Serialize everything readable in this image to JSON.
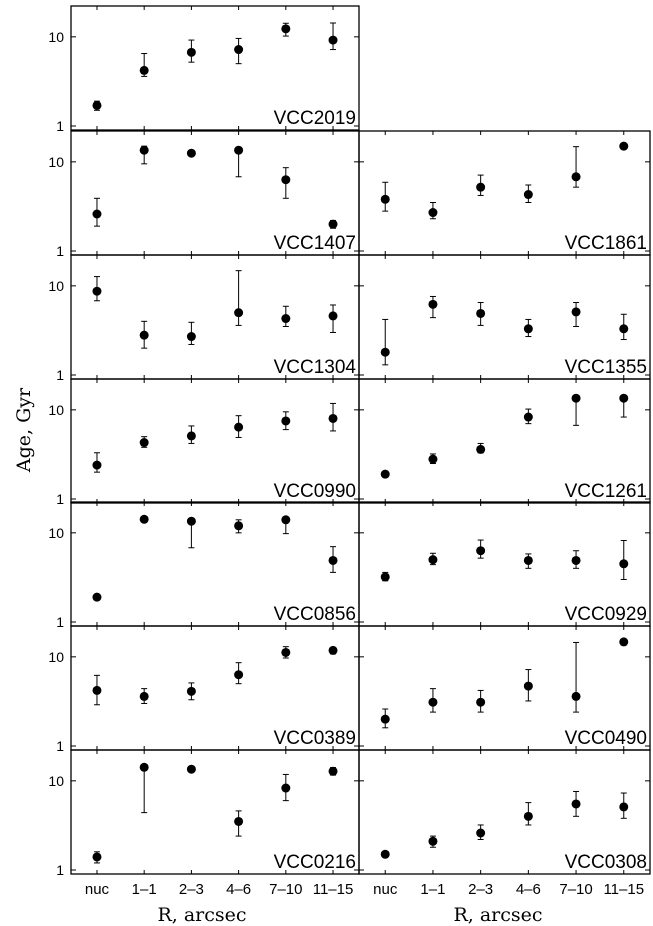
{
  "chart_data": {
    "type": "scatter",
    "ylabel": "Age, Gyr",
    "xlabel": "R, arcsec",
    "categories": [
      "nuc",
      "1–1",
      "2–3",
      "4–6",
      "7–10",
      "11–15"
    ],
    "yscale": "log",
    "ylim": [
      1,
      20
    ],
    "yticks": [
      {
        "value": 1,
        "label": "1"
      },
      {
        "value": 10,
        "label": "10"
      }
    ],
    "grid": false,
    "legend": "none",
    "panels": [
      {
        "name": "VCC2019",
        "row": 0,
        "col": 0,
        "points": [
          {
            "y": 1.7,
            "lo": 1.5,
            "hi": 1.9
          },
          {
            "y": 4.2,
            "lo": 3.6,
            "hi": 6.5
          },
          {
            "y": 6.7,
            "lo": 5.2,
            "hi": 9.2
          },
          {
            "y": 7.2,
            "lo": 5.0,
            "hi": 9.6
          },
          {
            "y": 12.3,
            "lo": 10.2,
            "hi": 14.2
          },
          {
            "y": 9.2,
            "lo": 7.2,
            "hi": 14.3
          }
        ]
      },
      {
        "name": "VCC1407",
        "row": 1,
        "col": 0,
        "points": [
          {
            "y": 2.6,
            "lo": 1.9,
            "hi": 3.9
          },
          {
            "y": 13.5,
            "lo": 9.5,
            "hi": 15.0
          },
          {
            "y": 12.5,
            "lo": null,
            "hi": null
          },
          {
            "y": 13.5,
            "lo": 6.8,
            "hi": 14.0
          },
          {
            "y": 6.3,
            "lo": 3.9,
            "hi": 8.6
          },
          {
            "y": 2.0,
            "lo": 1.8,
            "hi": 2.2
          }
        ]
      },
      {
        "name": "VCC1861",
        "row": 1,
        "col": 1,
        "points": [
          {
            "y": 3.8,
            "lo": 2.8,
            "hi": 5.9
          },
          {
            "y": 2.7,
            "lo": 2.3,
            "hi": 3.5
          },
          {
            "y": 5.2,
            "lo": 4.2,
            "hi": 7.1
          },
          {
            "y": 4.3,
            "lo": 3.5,
            "hi": 5.5
          },
          {
            "y": 6.8,
            "lo": 5.2,
            "hi": 14.8
          },
          {
            "y": 15.0,
            "lo": null,
            "hi": null
          }
        ]
      },
      {
        "name": "VCC1304",
        "row": 2,
        "col": 0,
        "points": [
          {
            "y": 8.7,
            "lo": 6.8,
            "hi": 12.7
          },
          {
            "y": 2.8,
            "lo": 2.0,
            "hi": 4.0
          },
          {
            "y": 2.7,
            "lo": 2.2,
            "hi": 3.9
          },
          {
            "y": 5.0,
            "lo": 3.6,
            "hi": 14.8
          },
          {
            "y": 4.3,
            "lo": 3.5,
            "hi": 5.9
          },
          {
            "y": 4.6,
            "lo": 3.0,
            "hi": 6.1
          }
        ]
      },
      {
        "name": "VCC1355",
        "row": 2,
        "col": 1,
        "points": [
          {
            "y": 1.8,
            "lo": 1.3,
            "hi": 4.2
          },
          {
            "y": 6.2,
            "lo": 4.4,
            "hi": 7.6
          },
          {
            "y": 4.9,
            "lo": 3.6,
            "hi": 6.5
          },
          {
            "y": 3.3,
            "lo": 2.7,
            "hi": 4.2
          },
          {
            "y": 5.1,
            "lo": 3.5,
            "hi": 6.5
          },
          {
            "y": 3.3,
            "lo": 2.5,
            "hi": 4.8
          }
        ]
      },
      {
        "name": "VCC0990",
        "row": 3,
        "col": 0,
        "points": [
          {
            "y": 2.4,
            "lo": 2.0,
            "hi": 3.3
          },
          {
            "y": 4.3,
            "lo": 3.8,
            "hi": 5.0
          },
          {
            "y": 5.1,
            "lo": 4.2,
            "hi": 6.6
          },
          {
            "y": 6.4,
            "lo": 4.9,
            "hi": 8.6
          },
          {
            "y": 7.5,
            "lo": 6.0,
            "hi": 9.5
          },
          {
            "y": 8.0,
            "lo": 5.8,
            "hi": 11.8
          }
        ]
      },
      {
        "name": "VCC1261",
        "row": 3,
        "col": 1,
        "points": [
          {
            "y": 1.9,
            "lo": null,
            "hi": null
          },
          {
            "y": 2.8,
            "lo": 2.5,
            "hi": 3.2
          },
          {
            "y": 3.6,
            "lo": 3.3,
            "hi": 4.2
          },
          {
            "y": 8.3,
            "lo": 7.0,
            "hi": 10.2
          },
          {
            "y": 13.5,
            "lo": 6.7,
            "hi": 14.3
          },
          {
            "y": 13.5,
            "lo": 8.3,
            "hi": 14.3
          }
        ]
      },
      {
        "name": "VCC0856",
        "row": 4,
        "col": 0,
        "points": [
          {
            "y": 1.9,
            "lo": null,
            "hi": null
          },
          {
            "y": 14.2,
            "lo": null,
            "hi": null
          },
          {
            "y": 13.5,
            "lo": 6.8,
            "hi": 14.2
          },
          {
            "y": 12.0,
            "lo": 10.0,
            "hi": 14.0
          },
          {
            "y": 14.0,
            "lo": 9.8,
            "hi": 15.0
          },
          {
            "y": 4.9,
            "lo": 3.6,
            "hi": 7.0
          }
        ]
      },
      {
        "name": "VCC0929",
        "row": 4,
        "col": 1,
        "points": [
          {
            "y": 3.2,
            "lo": 2.9,
            "hi": 3.6
          },
          {
            "y": 5.0,
            "lo": 4.4,
            "hi": 5.9
          },
          {
            "y": 6.3,
            "lo": 5.2,
            "hi": 8.3
          },
          {
            "y": 4.9,
            "lo": 4.0,
            "hi": 5.8
          },
          {
            "y": 4.9,
            "lo": 4.0,
            "hi": 6.3
          },
          {
            "y": 4.5,
            "lo": 3.0,
            "hi": 8.2
          }
        ]
      },
      {
        "name": "VCC0389",
        "row": 5,
        "col": 0,
        "points": [
          {
            "y": 4.2,
            "lo": 2.9,
            "hi": 6.2
          },
          {
            "y": 3.6,
            "lo": 3.0,
            "hi": 4.4
          },
          {
            "y": 4.1,
            "lo": 3.3,
            "hi": 5.1
          },
          {
            "y": 6.3,
            "lo": 5.0,
            "hi": 8.6
          },
          {
            "y": 11.2,
            "lo": 9.7,
            "hi": 13.0
          },
          {
            "y": 11.8,
            "lo": 10.8,
            "hi": 12.6
          }
        ]
      },
      {
        "name": "VCC0490",
        "row": 5,
        "col": 1,
        "points": [
          {
            "y": 2.0,
            "lo": 1.6,
            "hi": 2.6
          },
          {
            "y": 3.1,
            "lo": 2.4,
            "hi": 4.4
          },
          {
            "y": 3.1,
            "lo": 2.4,
            "hi": 4.2
          },
          {
            "y": 4.7,
            "lo": 3.2,
            "hi": 7.2
          },
          {
            "y": 3.6,
            "lo": 2.4,
            "hi": 14.5
          },
          {
            "y": 14.7,
            "lo": null,
            "hi": null
          }
        ]
      },
      {
        "name": "VCC0216",
        "row": 6,
        "col": 0,
        "points": [
          {
            "y": 1.4,
            "lo": 1.2,
            "hi": 1.6
          },
          {
            "y": 14.2,
            "lo": 4.4,
            "hi": 15.0
          },
          {
            "y": 13.5,
            "lo": null,
            "hi": null
          },
          {
            "y": 3.5,
            "lo": 2.4,
            "hi": 4.6
          },
          {
            "y": 8.3,
            "lo": 6.0,
            "hi": 11.8
          },
          {
            "y": 12.8,
            "lo": 11.6,
            "hi": 14.1
          }
        ]
      },
      {
        "name": "VCC0308",
        "row": 6,
        "col": 1,
        "points": [
          {
            "y": 1.5,
            "lo": null,
            "hi": null
          },
          {
            "y": 2.1,
            "lo": 1.8,
            "hi": 2.4
          },
          {
            "y": 2.6,
            "lo": 2.2,
            "hi": 3.2
          },
          {
            "y": 4.0,
            "lo": 3.2,
            "hi": 5.7
          },
          {
            "y": 5.5,
            "lo": 4.0,
            "hi": 7.6
          },
          {
            "y": 5.1,
            "lo": 3.8,
            "hi": 7.3
          }
        ]
      }
    ]
  }
}
